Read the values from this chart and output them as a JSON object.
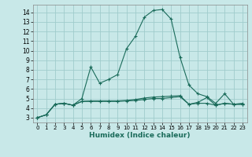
{
  "xlabel": "Humidex (Indice chaleur)",
  "xlim": [
    -0.5,
    23.5
  ],
  "ylim": [
    2.5,
    14.8
  ],
  "xticks": [
    0,
    1,
    2,
    3,
    4,
    5,
    6,
    7,
    8,
    9,
    10,
    11,
    12,
    13,
    14,
    15,
    16,
    17,
    18,
    19,
    20,
    21,
    22,
    23
  ],
  "yticks": [
    3,
    4,
    5,
    6,
    7,
    8,
    9,
    10,
    11,
    12,
    13,
    14
  ],
  "background_color": "#c8e8e8",
  "grid_color": "#a0cccc",
  "line_color": "#1a6b5a",
  "curves": [
    {
      "x": [
        0,
        1,
        2,
        3,
        4,
        5,
        6,
        7,
        8,
        9,
        10,
        11,
        12,
        13,
        14,
        15,
        16,
        17,
        18,
        19,
        20,
        21,
        22,
        23
      ],
      "y": [
        3.0,
        3.3,
        4.4,
        4.5,
        4.3,
        5.0,
        8.3,
        6.6,
        7.0,
        7.5,
        10.2,
        11.5,
        13.5,
        14.2,
        14.3,
        13.3,
        9.3,
        6.4,
        5.5,
        5.2,
        4.5,
        5.5,
        4.4,
        4.5
      ]
    },
    {
      "x": [
        0,
        1,
        2,
        3,
        4,
        5,
        6,
        7,
        8,
        9,
        10,
        11,
        12,
        13,
        14,
        15,
        16,
        17,
        18,
        19,
        20,
        21,
        22,
        23
      ],
      "y": [
        3.0,
        3.3,
        4.4,
        4.5,
        4.3,
        4.7,
        4.7,
        4.7,
        4.7,
        4.7,
        4.75,
        4.8,
        4.9,
        5.0,
        5.0,
        5.1,
        5.2,
        4.4,
        4.5,
        4.5,
        4.3,
        4.5,
        4.4,
        4.4
      ]
    },
    {
      "x": [
        0,
        1,
        2,
        3,
        4,
        5,
        6,
        7,
        8,
        9,
        10,
        11,
        12,
        13,
        14,
        15,
        16,
        17,
        18,
        19,
        20,
        21,
        22,
        23
      ],
      "y": [
        3.0,
        3.3,
        4.4,
        4.5,
        4.3,
        4.7,
        4.75,
        4.75,
        4.75,
        4.75,
        4.8,
        4.9,
        5.05,
        5.15,
        5.2,
        5.25,
        5.3,
        4.4,
        4.6,
        5.1,
        4.3,
        4.5,
        4.4,
        4.4
      ]
    }
  ]
}
